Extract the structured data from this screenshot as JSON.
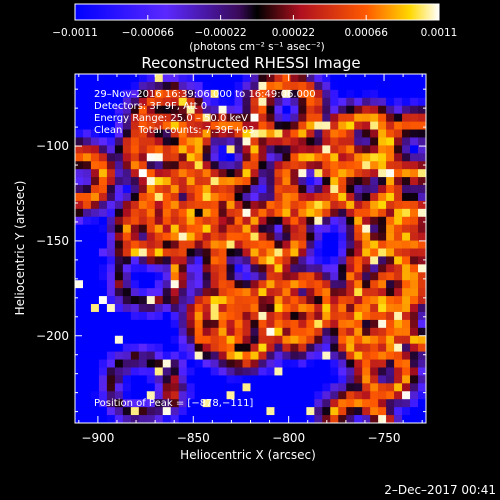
{
  "chart_data": {
    "type": "heatmap",
    "title": "Reconstructed RHESSI Image",
    "xlabel": "Heliocentric X (arcsec)",
    "ylabel": "Heliocentric Y (arcsec)",
    "xlim": [
      -912,
      -728
    ],
    "ylim": [
      -246,
      -62
    ],
    "xticks": [
      -900,
      -850,
      -800,
      -750
    ],
    "xtick_labels": [
      "−900",
      "−850",
      "−800",
      "−750"
    ],
    "yticks": [
      -100,
      -150,
      -200
    ],
    "ytick_labels": [
      "−100",
      "−150",
      "−200"
    ],
    "colorbar": {
      "range": [
        -0.0011,
        0.0011
      ],
      "ticks": [
        -0.0011,
        -0.00066,
        -0.00022,
        0.00022,
        0.00066,
        0.0011
      ],
      "tick_labels": [
        "−0.0011",
        "−0.00066",
        "−0.00022",
        "0.00022",
        "0.00066",
        "0.0011"
      ],
      "unit_label": "(photons cm⁻² s⁻¹ asec⁻²)"
    },
    "annotations": [
      "29–Nov–2016 16:39:06.000 to 16:49:06.000",
      "Detectors: 3F 9F, Att 0",
      "Energy Range: 25.0 – 50.0 keV",
      "Clean     Total counts: 7.39E+03"
    ],
    "peak_label": "Position of Peak = [−878,−111]",
    "peak_position": [
      -878,
      -111
    ]
  },
  "footer": {
    "date": "2–Dec–2017 00:41"
  }
}
